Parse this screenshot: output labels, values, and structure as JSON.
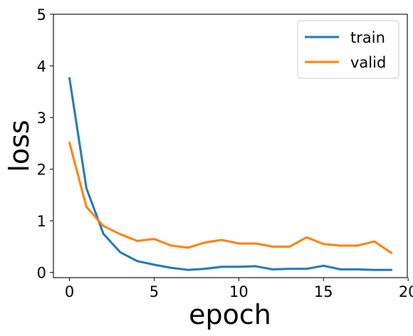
{
  "chart_data": {
    "type": "line",
    "title": "",
    "xlabel": "epoch",
    "ylabel": "loss",
    "xlim": [
      -0.95,
      19.95
    ],
    "ylim": [
      -0.1,
      5
    ],
    "xticks": [
      0,
      5,
      10,
      15,
      20
    ],
    "yticks": [
      0,
      1,
      2,
      3,
      4,
      5
    ],
    "xtick_labels": [
      "0",
      "5",
      "10",
      "15",
      "20"
    ],
    "ytick_labels": [
      "0",
      "1",
      "2",
      "3",
      "4",
      "5"
    ],
    "grid": false,
    "legend": {
      "placement": "top-right",
      "entries": [
        "train",
        "valid"
      ]
    },
    "x": [
      0,
      1,
      2,
      3,
      4,
      5,
      6,
      7,
      8,
      9,
      10,
      11,
      12,
      13,
      14,
      15,
      16,
      17,
      18,
      19
    ],
    "series": [
      {
        "name": "train",
        "color": "#1f77b4",
        "values": [
          3.76,
          1.63,
          0.75,
          0.39,
          0.22,
          0.15,
          0.09,
          0.05,
          0.07,
          0.11,
          0.11,
          0.12,
          0.06,
          0.07,
          0.07,
          0.13,
          0.06,
          0.06,
          0.05,
          0.05
        ]
      },
      {
        "name": "valid",
        "color": "#ff7f0e",
        "values": [
          2.51,
          1.27,
          0.9,
          0.74,
          0.61,
          0.65,
          0.52,
          0.48,
          0.58,
          0.63,
          0.56,
          0.56,
          0.5,
          0.5,
          0.68,
          0.55,
          0.52,
          0.52,
          0.6,
          0.38
        ]
      }
    ]
  }
}
